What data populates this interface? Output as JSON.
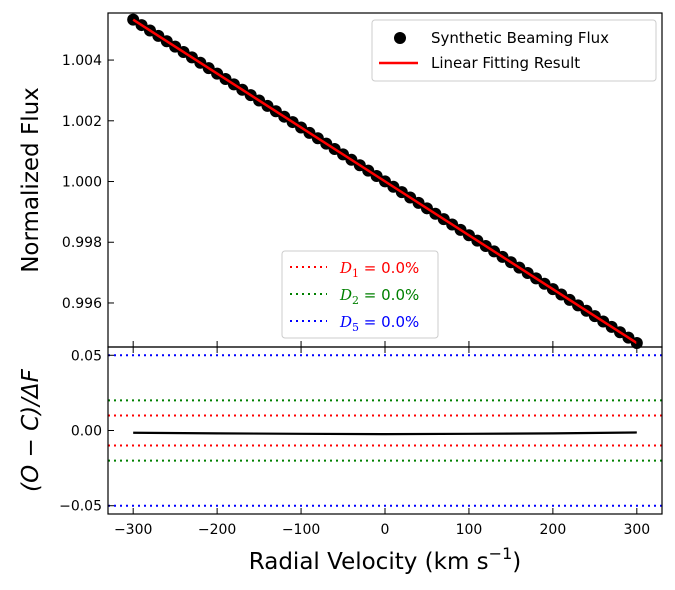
{
  "chart_data": [
    {
      "type": "scatter",
      "panel": "top",
      "ylabel": "Normalized Flux",
      "xlim": [
        -330,
        330
      ],
      "ylim": [
        0.99455,
        1.00555
      ],
      "x_ticks": [
        -300,
        -200,
        -100,
        0,
        100,
        200,
        300
      ],
      "y_ticks": [
        0.996,
        0.998,
        1.0,
        1.002,
        1.004
      ],
      "y_tick_labels": [
        "0.996",
        "0.998",
        "1.000",
        "1.002",
        "1.004"
      ],
      "series": [
        {
          "name": "Synthetic Beaming Flux",
          "kind": "points",
          "color": "#000000",
          "x_range": [
            -300,
            300
          ],
          "y_range": [
            1.00533,
            0.99468
          ]
        },
        {
          "name": "Linear Fitting Result",
          "kind": "line",
          "color": "#ff0000",
          "x": [
            -300,
            300
          ],
          "y": [
            1.00533,
            0.99468
          ]
        }
      ],
      "legend": {
        "position": "top-right",
        "entries": [
          "Synthetic Beaming Flux",
          "Linear Fitting Result"
        ]
      },
      "threshold_legend": {
        "position": "lower-center",
        "entries": [
          {
            "symbol": "D",
            "sub": "1",
            "value": " = 0.0%",
            "color": "#ff0000"
          },
          {
            "symbol": "D",
            "sub": "2",
            "value": " = 0.0%",
            "color": "#008000"
          },
          {
            "symbol": "D",
            "sub": "5",
            "value": " = 0.0%",
            "color": "#0000ff"
          }
        ]
      }
    },
    {
      "type": "line",
      "panel": "bottom",
      "xlabel": "Radial Velocity (km s",
      "xlabel_sup": "−1",
      "xlabel_close": ")",
      "ylabel": "(O − C)/ΔF",
      "xlim": [
        -330,
        330
      ],
      "ylim": [
        -0.0555,
        0.0555
      ],
      "x_ticks": [
        -300,
        -200,
        -100,
        0,
        100,
        200,
        300
      ],
      "x_tick_labels": [
        "−300",
        "−200",
        "−100",
        "0",
        "100",
        "200",
        "300"
      ],
      "y_ticks": [
        -0.05,
        0.0,
        0.05
      ],
      "y_tick_labels": [
        "−0.05",
        "0.00",
        "0.05"
      ],
      "residual": {
        "color": "#000000",
        "x": [
          -300,
          -200,
          -100,
          0,
          100,
          200,
          300
        ],
        "y": [
          -0.0015,
          -0.0019,
          -0.0022,
          -0.0024,
          -0.0022,
          -0.0019,
          -0.0013
        ]
      },
      "thresholds": [
        {
          "name": "D1",
          "color": "#ff0000",
          "values": [
            0.01,
            -0.01
          ]
        },
        {
          "name": "D2",
          "color": "#008000",
          "values": [
            0.02,
            -0.02
          ]
        },
        {
          "name": "D5",
          "color": "#0000ff",
          "values": [
            0.05,
            -0.05
          ]
        }
      ]
    }
  ]
}
